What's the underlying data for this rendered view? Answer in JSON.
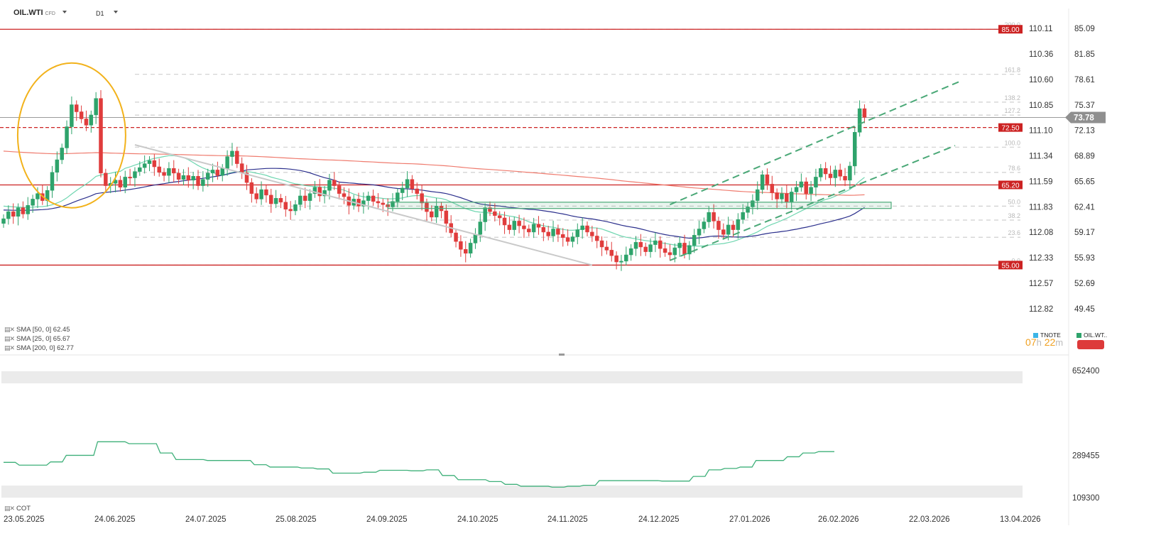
{
  "toolbar": {
    "symbol": "OIL.WTI",
    "symbol_type": "CFD",
    "timeframe": "D1"
  },
  "colors": {
    "up": "#2ea36b",
    "down": "#e03c3c",
    "level": "#cc2222",
    "sma50": "#2b2f8c",
    "sma25": "#6fd6b0",
    "sma200": "#ef7b6e",
    "fib": "#cfcfcf",
    "channel": "#4aa877",
    "highlight": "#f2b21b",
    "price_badge": "#8f8f8f",
    "cot": "#3fb07a"
  },
  "price_axis": {
    "labels": [
      "85.09",
      "81.85",
      "78.61",
      "75.37",
      "72.13",
      "68.89",
      "65.65",
      "62.41",
      "59.17",
      "55.93",
      "52.69",
      "49.45"
    ]
  },
  "second_axis": {
    "labels": [
      "110.11",
      "110.36",
      "110.60",
      "110.85",
      "111.10",
      "111.34",
      "111.59",
      "111.83",
      "112.08",
      "112.33",
      "112.57",
      "112.82"
    ]
  },
  "current_price": "73.78",
  "levels": [
    {
      "label": "85.00",
      "value": 85.0
    },
    {
      "label": "72.50",
      "value": 72.5
    },
    {
      "label": "65.20",
      "value": 65.2
    },
    {
      "label": "55.00",
      "value": 55.0
    }
  ],
  "fib": [
    {
      "label": "200.0"
    },
    {
      "label": "161.8"
    },
    {
      "label": "138.2"
    },
    {
      "label": "127.2"
    },
    {
      "label": "100.0"
    },
    {
      "label": "78.6"
    },
    {
      "label": "50.0"
    },
    {
      "label": "38.2"
    },
    {
      "label": "23.6"
    },
    {
      "label": "0.0"
    }
  ],
  "fib_range": [
    55.0,
    70.0
  ],
  "x_axis": {
    "labels": [
      "23.05.2025",
      "24.06.2025",
      "24.07.2025",
      "25.08.2025",
      "24.09.2025",
      "24.10.2025",
      "24.11.2025",
      "24.12.2025",
      "27.01.2026",
      "26.02.2026",
      "22.03.2026",
      "13.04.2026"
    ]
  },
  "indicators": [
    {
      "text": "SMA  [50,  0]  62.45"
    },
    {
      "text": "SMA  [25,  0]  65.67"
    },
    {
      "text": "SMA  [200,  0]  62.77"
    }
  ],
  "countdown": {
    "hours": "07",
    "h_unit": "h",
    "minutes": "22",
    "m_unit": "m"
  },
  "source_tags": {
    "tnote": "TNOTE",
    "oil": "OIL.WT.."
  },
  "cot": {
    "label": "COT",
    "axis_labels": [
      "652400",
      "289455",
      "109300"
    ],
    "range": [
      109300,
      652400
    ],
    "values": [
      260000,
      248000,
      248000,
      262000,
      290000,
      290000,
      348000,
      348000,
      340000,
      340000,
      300000,
      272000,
      272000,
      268000,
      268000,
      268000,
      250000,
      240000,
      240000,
      236000,
      232000,
      214000,
      214000,
      218000,
      226000,
      226000,
      224000,
      228000,
      204000,
      186000,
      186000,
      178000,
      166000,
      158000,
      158000,
      154000,
      158000,
      162000,
      182000,
      182000,
      182000,
      182000,
      180000,
      180000,
      200000,
      228000,
      234000,
      240000,
      268000,
      268000,
      284000,
      300000,
      306000,
      306000
    ]
  },
  "chart_data": {
    "type": "candlestick",
    "title": "OIL.WTI D1",
    "y_range": [
      47.0,
      88.0
    ],
    "x_range": [
      "2025-05-23",
      "2026-04-13"
    ],
    "note_values": "daily closes (approx.) read from chart",
    "closes": [
      60.9,
      61.8,
      61.2,
      62.3,
      61.5,
      62.6,
      63.4,
      64.1,
      63.2,
      64.5,
      66.8,
      68.4,
      69.9,
      72.6,
      75.4,
      74.5,
      73.6,
      72.8,
      74.1,
      76.2,
      66.7,
      65.1,
      65.4,
      65.8,
      64.9,
      66.2,
      66.1,
      66.9,
      67.4,
      67.9,
      68.3,
      67.5,
      66.8,
      66.4,
      67.3,
      66.7,
      65.9,
      66.4,
      65.8,
      66.3,
      65.1,
      65.9,
      66.7,
      67.1,
      66.4,
      67.3,
      68.8,
      69.5,
      67.9,
      66.7,
      65.5,
      64.1,
      63.4,
      64.6,
      63.9,
      62.8,
      63.5,
      63.0,
      62.1,
      61.9,
      62.7,
      63.8,
      63.2,
      64.1,
      64.9,
      63.8,
      64.5,
      65.8,
      65.1,
      64.1,
      63.7,
      62.6,
      63.4,
      62.5,
      63.2,
      63.8,
      63.1,
      62.9,
      62.7,
      62.4,
      63.1,
      64.2,
      64.8,
      65.9,
      64.7,
      64.1,
      62.9,
      61.8,
      61.1,
      62.5,
      61.9,
      60.3,
      59.1,
      58.0,
      57.0,
      56.5,
      57.8,
      58.9,
      60.5,
      62.3,
      61.8,
      61.3,
      61.0,
      60.1,
      59.5,
      60.6,
      60.0,
      59.6,
      59.2,
      60.2,
      59.8,
      59.2,
      58.7,
      59.6,
      58.9,
      58.5,
      58.0,
      58.6,
      59.5,
      60.0,
      59.2,
      58.7,
      58.1,
      57.3,
      56.9,
      56.2,
      55.4,
      55.5,
      56.3,
      57.1,
      57.9,
      57.3,
      56.7,
      57.6,
      58.1,
      57.1,
      56.6,
      56.3,
      57.2,
      57.8,
      56.4,
      57.5,
      58.8,
      59.6,
      60.5,
      61.7,
      60.6,
      59.5,
      58.9,
      60.1,
      59.5,
      60.8,
      61.7,
      62.4,
      63.2,
      64.6,
      66.5,
      65.3,
      64.2,
      63.4,
      64.1,
      63.0,
      64.3,
      64.9,
      65.6,
      64.1,
      64.9,
      66.2,
      67.3,
      66.6,
      66.1,
      67.1,
      66.3,
      65.8,
      67.6,
      71.9,
      74.9,
      73.8
    ]
  }
}
